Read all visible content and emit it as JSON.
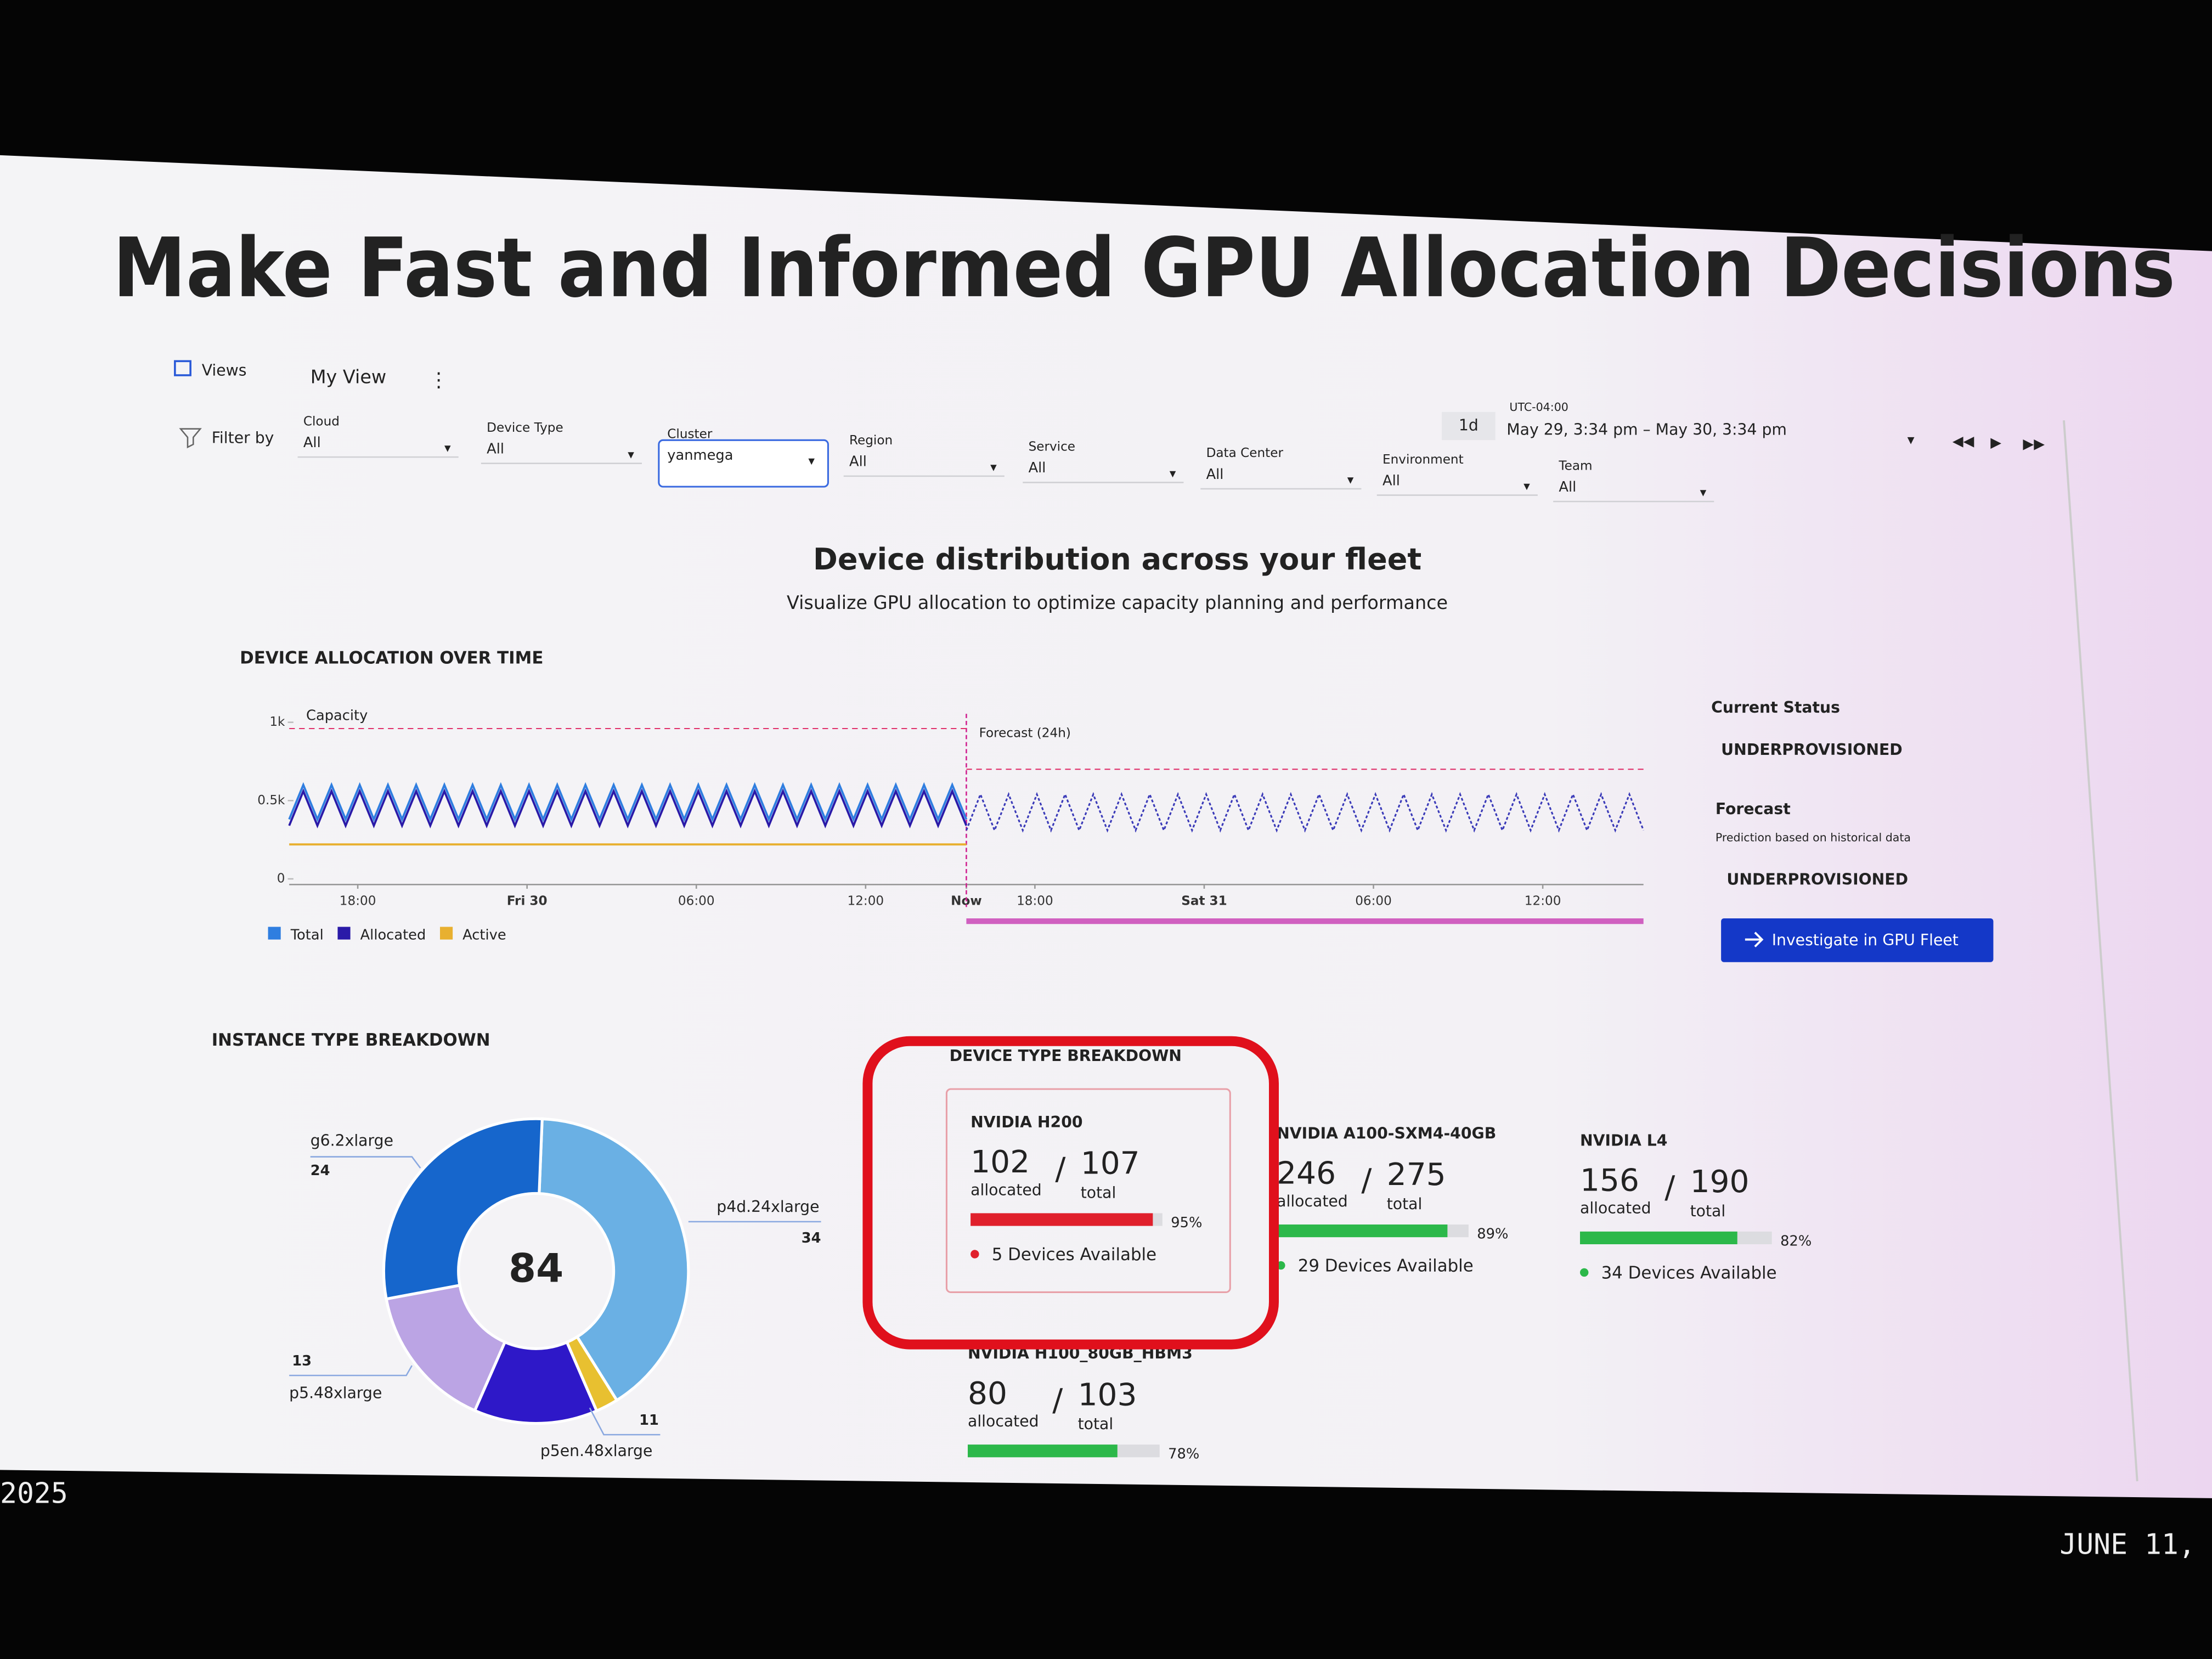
{
  "slide_title": "Make Fast and Informed GPU Allocation Decisions",
  "nav": {
    "views": "Views",
    "my_view": "My View"
  },
  "filter_by": "Filter by",
  "filters": [
    {
      "label": "Cloud",
      "value": "All"
    },
    {
      "label": "Device Type",
      "value": "All"
    },
    {
      "label": "Cluster",
      "value": "yanmega",
      "selected": true
    },
    {
      "label": "Region",
      "value": "All"
    },
    {
      "label": "Service",
      "value": "All"
    },
    {
      "label": "Data Center",
      "value": "All"
    },
    {
      "label": "Environment",
      "value": "All"
    },
    {
      "label": "Team",
      "value": "All"
    }
  ],
  "time": {
    "zone": "UTC-04:00",
    "span": "1d",
    "range": "May 29, 3:34 pm – May 30, 3:34 pm"
  },
  "heading": "Device distribution across your fleet",
  "subheading": "Visualize GPU allocation to optimize capacity planning and performance",
  "chart_data": [
    {
      "type": "line",
      "title": "DEVICE ALLOCATION OVER TIME",
      "xlim": [
        0,
        48
      ],
      "ylim": [
        0,
        1000
      ],
      "yticks": [
        0,
        {
          "value": 500,
          "label": "0.5k"
        },
        {
          "value": 1000,
          "label": "1k"
        }
      ],
      "xticks": [
        {
          "value": 2.43,
          "label": "18:00"
        },
        {
          "value": 8.43,
          "label": "Fri 30"
        },
        {
          "value": 14.43,
          "label": "06:00"
        },
        {
          "value": 20.43,
          "label": "12:00"
        },
        {
          "value": 24,
          "label": "Now"
        },
        {
          "value": 26.43,
          "label": "18:00"
        },
        {
          "value": 32.43,
          "label": "Sat 31"
        },
        {
          "value": 38.43,
          "label": "06:00"
        },
        {
          "value": 44.43,
          "label": "12:00"
        }
      ],
      "x": [
        0,
        0.5,
        1,
        1.5,
        2,
        2.5,
        3,
        3.5,
        4,
        4.5,
        5,
        5.5,
        6,
        6.5,
        7,
        7.5,
        8,
        8.5,
        9,
        9.5,
        10,
        10.5,
        11,
        11.5,
        12,
        12.5,
        13,
        13.5,
        14,
        14.5,
        15,
        15.5,
        16,
        16.5,
        17,
        17.5,
        18,
        18.5,
        19,
        19.5,
        20,
        20.5,
        21,
        21.5,
        22,
        22.5,
        23,
        23.5,
        24,
        24.5,
        25,
        25.5,
        26,
        26.5,
        27,
        27.5,
        28,
        28.5,
        29,
        29.5,
        30,
        30.5,
        31,
        31.5,
        32,
        32.5,
        33,
        33.5,
        34,
        34.5,
        35,
        35.5,
        36,
        36.5,
        37,
        37.5,
        38,
        38.5,
        39,
        39.5,
        40,
        40.5,
        41,
        41.5,
        42,
        42.5,
        43,
        43.5,
        44,
        44.5,
        45,
        45.5,
        46,
        46.5,
        47,
        47.5,
        48
      ],
      "series": [
        {
          "name": "Total",
          "color": "#2f7ee0",
          "values": [
            380,
            600,
            380,
            600,
            380,
            600,
            380,
            600,
            380,
            600,
            380,
            600,
            380,
            600,
            380,
            600,
            380,
            600,
            380,
            600,
            380,
            600,
            380,
            600,
            380,
            600,
            380,
            600,
            380,
            600,
            380,
            600,
            380,
            600,
            380,
            600,
            380,
            600,
            380,
            600,
            380,
            600,
            380,
            600,
            380,
            600,
            380,
            600,
            380,
            null,
            null,
            null,
            null,
            null,
            null,
            null,
            null,
            null,
            null,
            null,
            null,
            null,
            null,
            null,
            null,
            null,
            null,
            null,
            null,
            null,
            null,
            null,
            null,
            null,
            null,
            null,
            null,
            null,
            null,
            null,
            null,
            null,
            null,
            null,
            null,
            null,
            null,
            null,
            null,
            null,
            null,
            null,
            null,
            null,
            null,
            null,
            null
          ]
        },
        {
          "name": "Allocated",
          "color": "#2a1aa8",
          "values": [
            340,
            560,
            340,
            560,
            340,
            560,
            340,
            560,
            340,
            560,
            340,
            560,
            340,
            560,
            340,
            560,
            340,
            560,
            340,
            560,
            340,
            560,
            340,
            560,
            340,
            560,
            340,
            560,
            340,
            560,
            340,
            560,
            340,
            560,
            340,
            560,
            340,
            560,
            340,
            560,
            340,
            560,
            340,
            560,
            340,
            560,
            340,
            560,
            340,
            null,
            null,
            null,
            null,
            null,
            null,
            null,
            null,
            null,
            null,
            null,
            null,
            null,
            null,
            null,
            null,
            null,
            null,
            null,
            null,
            null,
            null,
            null,
            null,
            null,
            null,
            null,
            null,
            null,
            null,
            null,
            null,
            null,
            null,
            null,
            null,
            null,
            null,
            null,
            null,
            null,
            null,
            null,
            null,
            null,
            null,
            null,
            null
          ]
        },
        {
          "name": "Active",
          "color": "#e8b030",
          "values": [
            220,
            220,
            220,
            220,
            220,
            220,
            220,
            220,
            220,
            220,
            220,
            220,
            220,
            220,
            220,
            220,
            220,
            220,
            220,
            220,
            220,
            220,
            220,
            220,
            220,
            220,
            220,
            220,
            220,
            220,
            220,
            220,
            220,
            220,
            220,
            220,
            220,
            220,
            220,
            220,
            220,
            220,
            220,
            220,
            220,
            220,
            220,
            220,
            220,
            null,
            null,
            null,
            null,
            null,
            null,
            null,
            null,
            null,
            null,
            null,
            null,
            null,
            null,
            null,
            null,
            null,
            null,
            null,
            null,
            null,
            null,
            null,
            null,
            null,
            null,
            null,
            null,
            null,
            null,
            null,
            null,
            null,
            null,
            null,
            null,
            null,
            null,
            null,
            null,
            null,
            null,
            null,
            null,
            null,
            null,
            null,
            null
          ]
        },
        {
          "color": "#3a3ab8",
          "dash": true,
          "values": [
            null,
            null,
            null,
            null,
            null,
            null,
            null,
            null,
            null,
            null,
            null,
            null,
            null,
            null,
            null,
            null,
            null,
            null,
            null,
            null,
            null,
            null,
            null,
            null,
            null,
            null,
            null,
            null,
            null,
            null,
            null,
            null,
            null,
            null,
            null,
            null,
            null,
            null,
            null,
            null,
            null,
            null,
            null,
            null,
            null,
            null,
            null,
            null,
            310,
            540,
            310,
            540,
            310,
            540,
            310,
            540,
            310,
            540,
            310,
            540,
            310,
            540,
            310,
            540,
            310,
            540,
            310,
            540,
            310,
            540,
            310,
            540,
            310,
            540,
            310,
            540,
            310,
            540,
            310,
            540,
            310,
            540,
            310,
            540,
            310,
            540,
            310,
            540,
            310,
            540,
            310,
            540,
            310,
            540,
            310,
            540,
            310
          ]
        }
      ],
      "reference_lines": [
        {
          "label": "Capacity",
          "color": "#e0306a",
          "x": [
            0,
            24
          ],
          "y": 960
        },
        {
          "color": "#e0306a",
          "x": [
            24,
            48
          ],
          "y": 700
        }
      ],
      "forecast_marker": {
        "label": "Forecast (24h)",
        "x": 24,
        "color": "#d02090"
      }
    },
    {
      "type": "pie",
      "title": "INSTANCE TYPE BREAKDOWN",
      "total": 84,
      "categories": [
        "p4d.24xlarge",
        null,
        "p5en.48xlarge",
        "p5.48xlarge",
        "g6.2xlarge"
      ],
      "values": [
        34,
        2,
        11,
        13,
        24
      ],
      "colors": [
        "#6ab0e4",
        "#e8c030",
        "#2e18c8",
        "#bba4e4",
        "#1666cc"
      ]
    }
  ],
  "status": {
    "current_label": "Current Status",
    "current_value": "UNDERPROVISIONED",
    "forecast_label": "Forecast",
    "forecast_note": "Prediction based on historical data",
    "forecast_value": "UNDERPROVISIONED",
    "button": "Investigate in GPU Fleet"
  },
  "device_breakdown_title": "DEVICE TYPE BREAKDOWN",
  "device_cards": [
    {
      "name": "NVIDIA H200",
      "allocated": 102,
      "allocated_label": "allocated",
      "total": 107,
      "total_label": "total",
      "percent": 95,
      "percent_label": "95%",
      "color": "#e0202c",
      "available": "5 Devices Available"
    },
    {
      "name": "NVIDIA A100-SXM4-40GB",
      "allocated": 246,
      "allocated_label": "allocated",
      "total": 275,
      "total_label": "total",
      "percent": 89,
      "percent_label": "89%",
      "color": "#2cb84a",
      "available": "29 Devices Available"
    },
    {
      "name": "NVIDIA L4",
      "allocated": 156,
      "allocated_label": "allocated",
      "total": 190,
      "total_label": "total",
      "percent": 82,
      "percent_label": "82%",
      "color": "#2cb84a",
      "available": "34 Devices Available"
    },
    {
      "name": "NVIDIA H100_80GB_HBM3",
      "allocated": 80,
      "allocated_label": "allocated",
      "total": 103,
      "total_label": "total",
      "percent": 78,
      "percent_label": "78%",
      "color": "#2cb84a"
    }
  ],
  "footer": {
    "year": "2025",
    "date": "JUNE 11,"
  }
}
